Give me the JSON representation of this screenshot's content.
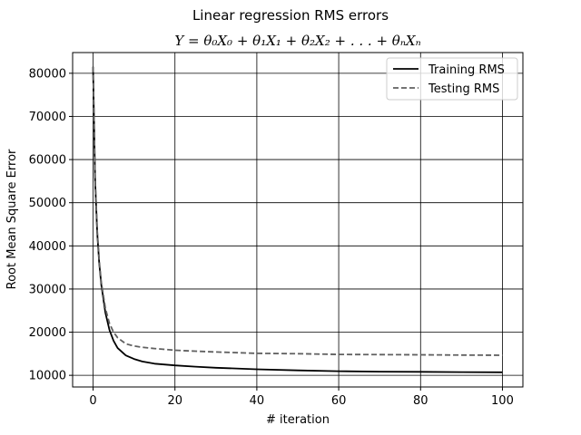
{
  "chart_data": {
    "type": "line",
    "title": "Linear regression RMS errors",
    "subtitle": "Y = θ₀X₀ + θ₁X₁ + θ₂X₂ + . . . + θₙXₙ",
    "xlabel": "# iteration",
    "ylabel": "Root Mean Square Error",
    "xlim": [
      -5,
      105
    ],
    "ylim": [
      7300,
      84800
    ],
    "xticks": [
      0,
      20,
      40,
      60,
      80,
      100
    ],
    "yticks": [
      10000,
      20000,
      30000,
      40000,
      50000,
      60000,
      70000,
      80000
    ],
    "grid": true,
    "legend_position": "top-right",
    "series": [
      {
        "name": "Training RMS",
        "style": "solid",
        "color": "#000000",
        "x": [
          0,
          0.5,
          1,
          1.5,
          2,
          3,
          4,
          5,
          6,
          8,
          10,
          12,
          15,
          20,
          25,
          30,
          40,
          50,
          60,
          70,
          80,
          90,
          100
        ],
        "y": [
          81500,
          55000,
          43000,
          36000,
          31000,
          24500,
          20500,
          18000,
          16300,
          14600,
          13800,
          13200,
          12700,
          12300,
          12000,
          11750,
          11400,
          11150,
          10950,
          10850,
          10800,
          10750,
          10700
        ]
      },
      {
        "name": "Testing RMS",
        "style": "dashed",
        "color": "#606060",
        "x": [
          0,
          0.5,
          1,
          1.5,
          2,
          3,
          4,
          5,
          6,
          8,
          10,
          12,
          15,
          20,
          25,
          30,
          40,
          50,
          60,
          70,
          80,
          90,
          100
        ],
        "y": [
          81500,
          55500,
          43500,
          36500,
          31500,
          25500,
          22000,
          20000,
          18700,
          17300,
          16800,
          16500,
          16200,
          15800,
          15600,
          15400,
          15100,
          15000,
          14850,
          14800,
          14750,
          14700,
          14650
        ]
      }
    ]
  }
}
